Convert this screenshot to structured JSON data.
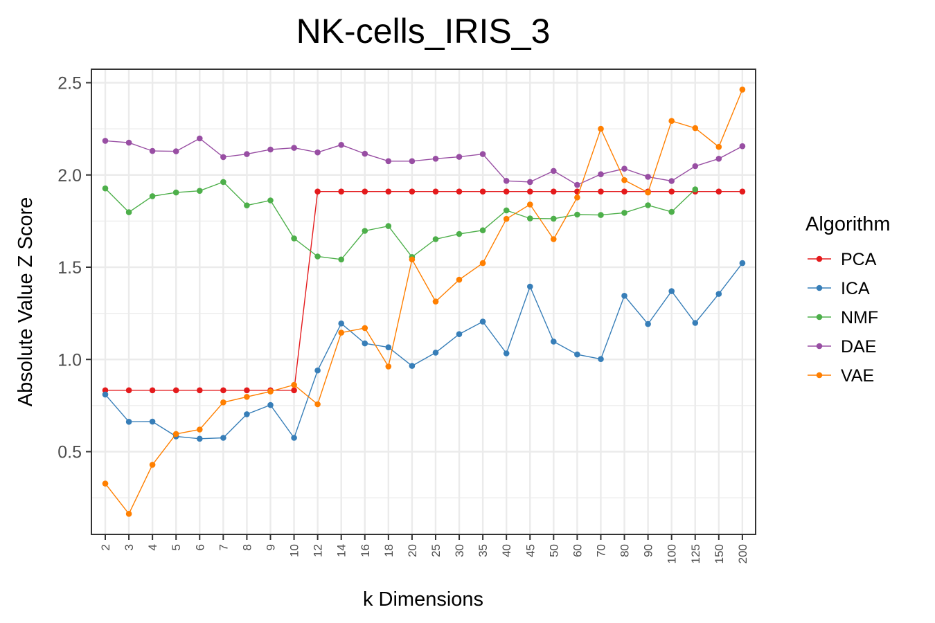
{
  "chart_data": {
    "type": "line",
    "title": "NK-cells_IRIS_3",
    "xlabel": "k Dimensions",
    "ylabel": "Absolute Value Z Score",
    "legend_title": "Algorithm",
    "legend_position": "right",
    "grid": true,
    "ylim": [
      0.1,
      2.6
    ],
    "yticks": [
      "0.5",
      "1.0",
      "1.5",
      "2.0",
      "2.5"
    ],
    "categories": [
      "2",
      "3",
      "4",
      "5",
      "6",
      "7",
      "8",
      "9",
      "10",
      "12",
      "14",
      "16",
      "18",
      "20",
      "25",
      "30",
      "35",
      "40",
      "45",
      "50",
      "60",
      "70",
      "80",
      "90",
      "100",
      "125",
      "150",
      "200"
    ],
    "series": [
      {
        "name": "PCA",
        "color": "#E41A1C",
        "values": [
          0.833,
          0.833,
          0.833,
          0.833,
          0.833,
          0.833,
          0.833,
          0.833,
          0.833,
          1.91,
          1.91,
          1.91,
          1.91,
          1.91,
          1.91,
          1.91,
          1.91,
          1.91,
          1.91,
          1.91,
          1.91,
          1.91,
          1.91,
          1.91,
          1.91,
          1.91,
          1.91,
          1.91
        ]
      },
      {
        "name": "ICA",
        "color": "#377EB8",
        "values": [
          0.81,
          0.662,
          0.663,
          0.583,
          0.57,
          0.575,
          0.703,
          0.753,
          0.575,
          0.94,
          1.195,
          1.087,
          1.066,
          0.965,
          1.037,
          1.137,
          1.205,
          1.033,
          1.395,
          1.097,
          1.027,
          1.002,
          1.345,
          1.192,
          1.37,
          1.198,
          1.355,
          1.522
        ]
      },
      {
        "name": "NMF",
        "color": "#4DAF4A",
        "values": [
          1.927,
          1.798,
          1.885,
          1.905,
          1.914,
          1.962,
          1.835,
          1.862,
          1.656,
          1.558,
          1.542,
          1.697,
          1.723,
          1.555,
          1.652,
          1.68,
          1.7,
          1.808,
          1.764,
          1.763,
          1.785,
          1.783,
          1.795,
          1.836,
          1.8,
          1.922,
          null,
          null
        ]
      },
      {
        "name": "DAE",
        "color": "#984EA3",
        "values": [
          2.185,
          2.175,
          2.13,
          2.128,
          2.198,
          2.097,
          2.113,
          2.138,
          2.147,
          2.122,
          2.163,
          2.115,
          2.075,
          2.075,
          2.088,
          2.098,
          2.113,
          1.968,
          1.962,
          2.022,
          1.946,
          2.004,
          2.034,
          1.99,
          1.967,
          2.048,
          2.088,
          2.156
        ]
      },
      {
        "name": "VAE",
        "color": "#FF7F00",
        "values": [
          0.327,
          0.163,
          0.429,
          0.596,
          0.62,
          0.767,
          0.797,
          0.826,
          0.862,
          0.757,
          1.145,
          1.17,
          0.962,
          1.542,
          1.314,
          1.432,
          1.522,
          1.762,
          1.84,
          1.652,
          1.878,
          2.25,
          1.972,
          1.905,
          2.293,
          2.254,
          2.152,
          2.463
        ]
      }
    ]
  }
}
